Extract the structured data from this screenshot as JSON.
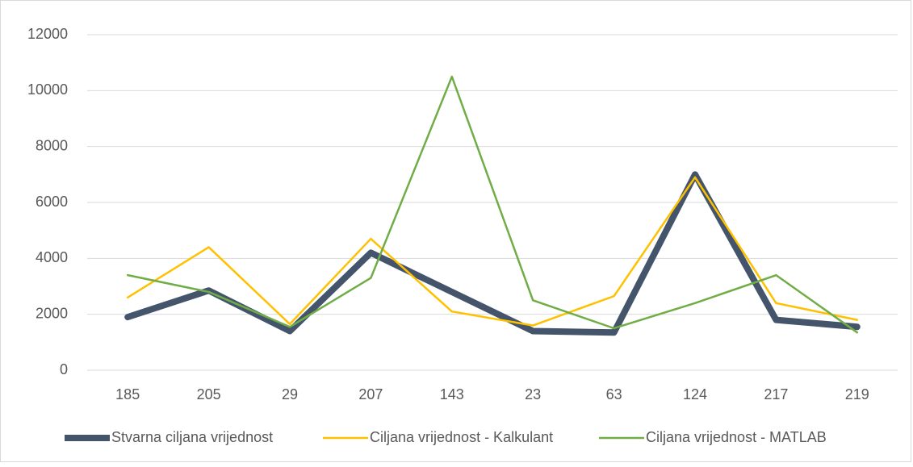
{
  "chart_data": {
    "type": "line",
    "categories": [
      "185",
      "205",
      "29",
      "207",
      "143",
      "23",
      "63",
      "124",
      "217",
      "219"
    ],
    "series": [
      {
        "name": "Stvarna ciljana vrijednost",
        "color": "#44546a",
        "values": [
          1900,
          2850,
          1400,
          4200,
          2800,
          1400,
          1350,
          7000,
          1800,
          1550
        ]
      },
      {
        "name": "Ciljana vrijednost - Kalkulant",
        "color": "#ffc000",
        "values": [
          2600,
          4400,
          1650,
          4700,
          2100,
          1600,
          2650,
          6900,
          2400,
          1800
        ]
      },
      {
        "name": "Ciljana vrijednost - MATLAB",
        "color": "#70ad47",
        "values": [
          3400,
          2800,
          1550,
          3300,
          10500,
          2500,
          1500,
          2400,
          3400,
          1350
        ]
      }
    ],
    "ylim": [
      0,
      12000
    ],
    "yticks": [
      0,
      2000,
      4000,
      6000,
      8000,
      10000,
      12000
    ],
    "grid": true,
    "legend": "bottom"
  }
}
